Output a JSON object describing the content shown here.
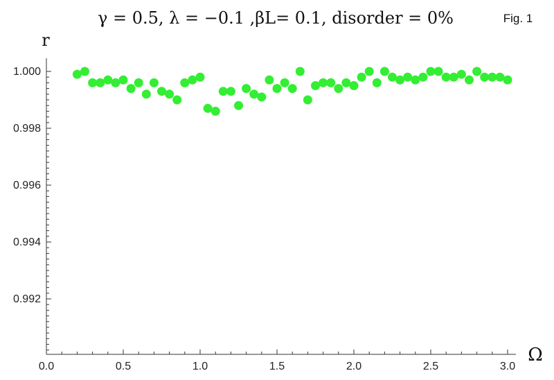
{
  "chart_data": {
    "type": "scatter",
    "title": "γ = 0.5, λ = −0.1 ,βL= 0.1, disorder = 0%",
    "figure_label": "Fig. 1",
    "xlabel": "Ω",
    "ylabel": "r",
    "xlim": [
      0.0,
      3.05
    ],
    "ylim": [
      0.99,
      1.0005
    ],
    "x_ticks": [
      0.0,
      0.5,
      1.0,
      1.5,
      2.0,
      2.5,
      3.0
    ],
    "x_tick_labels": [
      "0.0",
      "0.5",
      "1.0",
      "1.5",
      "2.0",
      "2.5",
      "3.0"
    ],
    "y_ticks": [
      0.992,
      0.994,
      0.996,
      0.998,
      1.0
    ],
    "y_tick_labels": [
      "0.992",
      "0.994",
      "0.996",
      "0.998",
      "1.000"
    ],
    "grid": false,
    "marker_color": "#33ee33",
    "series": [
      {
        "x": [
          0.2,
          0.25,
          0.3,
          0.35,
          0.4,
          0.45,
          0.5,
          0.55,
          0.6,
          0.65,
          0.7,
          0.75,
          0.8,
          0.85,
          0.9,
          0.95,
          1.0,
          1.05,
          1.1,
          1.15,
          1.2,
          1.25,
          1.3,
          1.35,
          1.4,
          1.45,
          1.5,
          1.55,
          1.6,
          1.65,
          1.7,
          1.75,
          1.8,
          1.85,
          1.9,
          1.95,
          2.0,
          2.05,
          2.1,
          2.15,
          2.2,
          2.25,
          2.3,
          2.35,
          2.4,
          2.45,
          2.5,
          2.55,
          2.6,
          2.65,
          2.7,
          2.75,
          2.8,
          2.85,
          2.9,
          2.95,
          3.0
        ],
        "y": [
          0.9999,
          1.0,
          0.9996,
          0.9996,
          0.9997,
          0.9996,
          0.9997,
          0.9994,
          0.9996,
          0.9992,
          0.9996,
          0.9993,
          0.9992,
          0.999,
          0.9996,
          0.9997,
          0.9998,
          0.9987,
          0.9986,
          0.9993,
          0.9993,
          0.9988,
          0.9994,
          0.9992,
          0.9991,
          0.9997,
          0.9994,
          0.9996,
          0.9994,
          1.0,
          0.999,
          0.9995,
          0.9996,
          0.9996,
          0.9994,
          0.9996,
          0.9995,
          0.9998,
          1.0,
          0.9996,
          1.0,
          0.9998,
          0.9997,
          0.9998,
          0.9997,
          0.9998,
          1.0,
          1.0,
          0.9998,
          0.9998,
          0.9999,
          0.9997,
          1.0,
          0.9998,
          0.9998,
          0.9998,
          0.9997
        ]
      }
    ]
  }
}
